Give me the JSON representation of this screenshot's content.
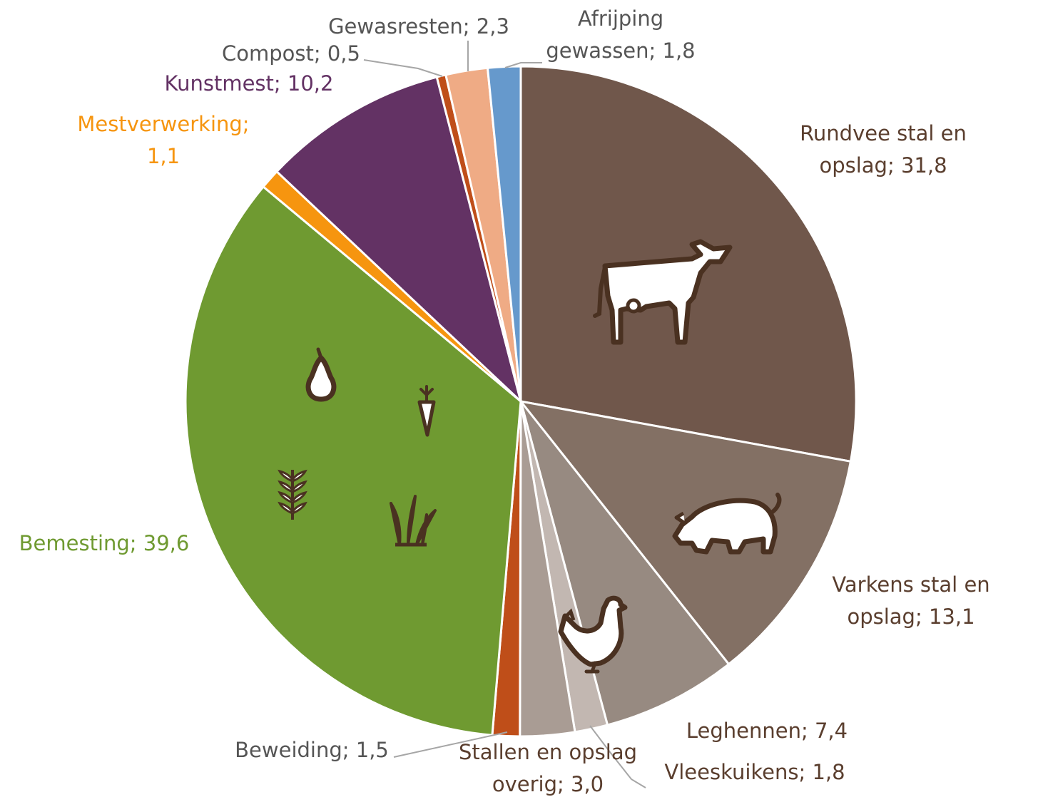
{
  "chart_data": {
    "type": "pie",
    "title": "",
    "start": "top",
    "direction": "clockwise",
    "slices": [
      {
        "label": [
          "Rundvee stal en",
          "opslag; 31,8"
        ],
        "value": 31.8,
        "color": "#70574b",
        "label_color": "#5a3e2e",
        "icon": "cow-icon"
      },
      {
        "label": [
          "Varkens stal en",
          "opslag; 13,1"
        ],
        "value": 13.1,
        "color": "#837064",
        "label_color": "#5a3e2e",
        "icon": "pig-icon"
      },
      {
        "label": [
          "Leghennen; 7,4"
        ],
        "value": 7.4,
        "color": "#978a81",
        "label_color": "#5a3e2e",
        "icon": "chicken-icon"
      },
      {
        "label": [
          "Vleeskuikens; 1,8"
        ],
        "value": 1.8,
        "color": "#c2b7b1",
        "label_color": "#5a3e2e"
      },
      {
        "label": [
          "Stallen en opslag",
          "overig; 3,0"
        ],
        "value": 3.0,
        "color": "#a99c94",
        "label_color": "#5a3e2e"
      },
      {
        "label": [
          "Beweiding; 1,5"
        ],
        "value": 1.5,
        "color": "#bf4e19",
        "label_color": "#555555"
      },
      {
        "label": [
          "Bemesting; 39,6"
        ],
        "value": 39.6,
        "color": "#6f9a31",
        "label_color": "#6f9a31",
        "icons": [
          "pear-icon",
          "carrot-icon",
          "grain-icon",
          "grass-icon"
        ]
      },
      {
        "label": [
          "Mestverwerking;",
          "1,1"
        ],
        "value": 1.1,
        "color": "#f6950f",
        "label_color": "#f6950f"
      },
      {
        "label": [
          "Kunstmest; 10,2"
        ],
        "value": 10.2,
        "color": "#633264",
        "label_color": "#633264"
      },
      {
        "label": [
          "Compost; 0,5"
        ],
        "value": 0.5,
        "color": "#bf4e19",
        "label_color": "#555555"
      },
      {
        "label": [
          "Gewasresten; 2,3"
        ],
        "value": 2.3,
        "color": "#efab85",
        "label_color": "#555555"
      },
      {
        "label": [
          "Afrijping",
          "gewassen; 1,8"
        ],
        "value": 1.8,
        "color": "#6699cc",
        "label_color": "#555555"
      }
    ]
  }
}
